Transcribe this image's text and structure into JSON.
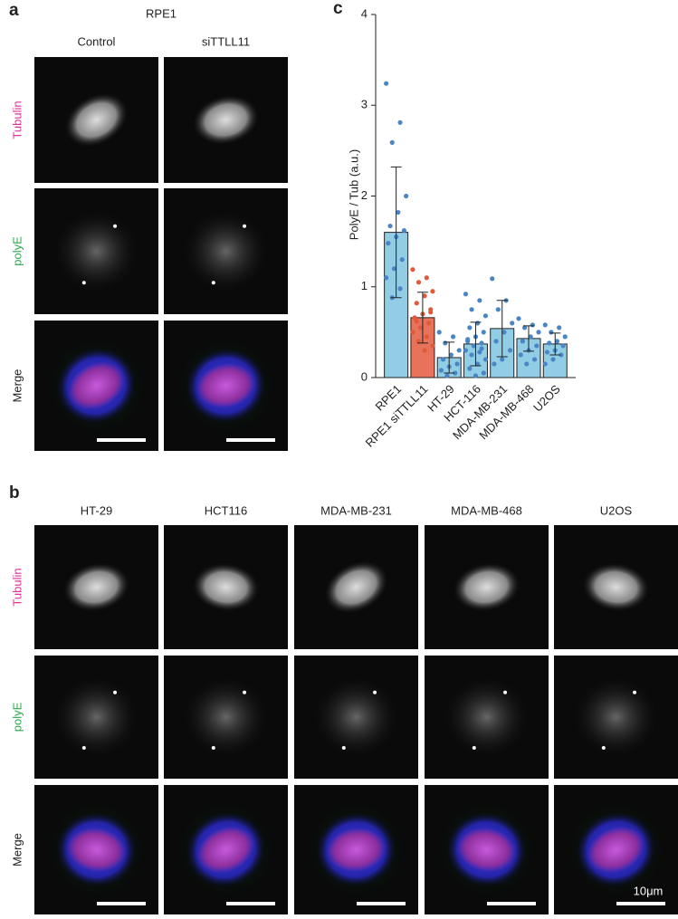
{
  "panel_a": {
    "label": "a",
    "title": "RPE1",
    "columns": [
      "Control",
      "siTTLL11"
    ],
    "rows": [
      "Tubulin",
      "polyE",
      "Merge"
    ]
  },
  "panel_b": {
    "label": "b",
    "columns": [
      "HT-29",
      "HCT116",
      "MDA-MB-231",
      "MDA-MB-468",
      "U2OS"
    ],
    "rows": [
      "Tubulin",
      "polyE",
      "Merge"
    ],
    "scale_bar": "10μm"
  },
  "chart_data": {
    "type": "bar",
    "panel_label": "c",
    "y_label": "PolyE / Tub (a.u.)",
    "categories": [
      "RPE1",
      "RPE1 siTTLL11",
      "HT-29",
      "HCT-116",
      "MDA-MB-231",
      "MDA-MB-468",
      "U2OS"
    ],
    "values": [
      1.6,
      0.66,
      0.22,
      0.37,
      0.54,
      0.43,
      0.37
    ],
    "errors": [
      0.72,
      0.28,
      0.17,
      0.24,
      0.31,
      0.14,
      0.12
    ],
    "colors": [
      "#92cde6",
      "#e8735a",
      "#92cde6",
      "#92cde6",
      "#92cde6",
      "#92cde6",
      "#92cde6"
    ],
    "point_colors": [
      "#4a86c5",
      "#e05a3a",
      "#4a86c5",
      "#4a86c5",
      "#4a86c5",
      "#4a86c5",
      "#4a86c5"
    ],
    "points": [
      [
        3.24,
        2.81,
        2.59,
        2.0,
        1.82,
        1.67,
        1.62,
        1.55,
        1.48,
        1.3,
        1.2,
        1.1,
        0.98,
        0.88
      ],
      [
        1.19,
        1.1,
        1.05,
        0.95,
        0.9,
        0.82,
        0.75,
        0.7,
        0.66,
        0.6,
        0.55,
        0.5,
        0.45,
        0.4,
        0.35,
        0.3,
        0.62,
        0.72
      ],
      [
        0.5,
        0.45,
        0.38,
        0.3,
        0.25,
        0.2,
        0.15,
        0.12,
        0.08,
        0.05,
        0.02
      ],
      [
        0.92,
        0.85,
        0.75,
        0.68,
        0.6,
        0.55,
        0.5,
        0.45,
        0.42,
        0.38,
        0.35,
        0.3,
        0.28,
        0.25,
        0.2,
        0.15,
        0.1,
        0.05,
        0.02,
        0.4,
        0.32
      ],
      [
        1.09,
        0.85,
        0.75,
        0.6,
        0.5,
        0.4,
        0.3,
        0.2,
        0.15
      ],
      [
        0.65,
        0.58,
        0.55,
        0.5,
        0.45,
        0.4,
        0.35,
        0.3,
        0.25,
        0.2,
        0.15
      ],
      [
        0.58,
        0.55,
        0.5,
        0.45,
        0.4,
        0.38,
        0.35,
        0.3,
        0.28,
        0.25,
        0.2,
        0.15
      ]
    ],
    "ylim": [
      0,
      4
    ],
    "yticks": [
      0,
      1,
      2,
      3,
      4
    ]
  }
}
